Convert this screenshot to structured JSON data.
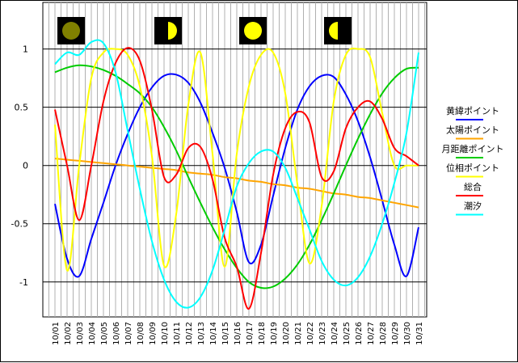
{
  "chart_data": {
    "type": "line",
    "x": [
      "10/01",
      "10/02",
      "10/03",
      "10/04",
      "10/05",
      "10/06",
      "10/07",
      "10/08",
      "10/09",
      "10/10",
      "10/11",
      "10/12",
      "10/13",
      "10/14",
      "10/15",
      "10/16",
      "10/17",
      "10/18",
      "10/19",
      "10/20",
      "10/21",
      "10/22",
      "10/23",
      "10/24",
      "10/25",
      "10/26",
      "10/27",
      "10/28",
      "10/29",
      "10/30",
      "10/31"
    ],
    "ylim": [
      -1.3,
      1.4
    ],
    "yticks": [
      {
        "value": 1,
        "label": "1"
      },
      {
        "value": 0.5,
        "label": "0.5"
      },
      {
        "value": 0,
        "label": "0"
      },
      {
        "value": -0.5,
        "label": "-0.5"
      },
      {
        "value": -1,
        "label": "-1"
      }
    ],
    "grid": true,
    "legend_position": "right",
    "moon_phases": [
      {
        "day": 2,
        "phase": "new-moon",
        "color": "#808000"
      },
      {
        "day": 10,
        "phase": "first-quarter",
        "color": "#ffff00"
      },
      {
        "day": 17,
        "phase": "full-moon",
        "color": "#ffff00"
      },
      {
        "day": 24,
        "phase": "last-quarter",
        "color": "#ffff00"
      }
    ],
    "series": [
      {
        "name": "黄緯ポイント",
        "color": "#0000ff",
        "values": [
          -0.33,
          -0.8,
          -0.95,
          -0.63,
          -0.32,
          0.0,
          0.27,
          0.5,
          0.67,
          0.77,
          0.78,
          0.71,
          0.54,
          0.28,
          -0.02,
          -0.4,
          -0.83,
          -0.68,
          -0.26,
          0.15,
          0.48,
          0.68,
          0.77,
          0.76,
          0.61,
          0.38,
          0.07,
          -0.3,
          -0.68,
          -0.95,
          -0.53
        ]
      },
      {
        "name": "太陽ポイント",
        "color": "#ffa500",
        "values": [
          0.06,
          0.05,
          0.04,
          0.03,
          0.02,
          0.01,
          0.0,
          -0.01,
          -0.02,
          -0.03,
          -0.04,
          -0.06,
          -0.07,
          -0.08,
          -0.1,
          -0.11,
          -0.13,
          -0.14,
          -0.16,
          -0.17,
          -0.19,
          -0.2,
          -0.22,
          -0.24,
          -0.25,
          -0.27,
          -0.28,
          -0.3,
          -0.32,
          -0.34,
          -0.36
        ]
      },
      {
        "name": "月距離ポイント",
        "color": "#00cc00",
        "values": [
          0.8,
          0.84,
          0.86,
          0.85,
          0.82,
          0.77,
          0.7,
          0.62,
          0.5,
          0.33,
          0.13,
          -0.1,
          -0.32,
          -0.53,
          -0.72,
          -0.88,
          -1.0,
          -1.05,
          -1.04,
          -0.97,
          -0.85,
          -0.68,
          -0.47,
          -0.24,
          0.0,
          0.23,
          0.44,
          0.62,
          0.75,
          0.83,
          0.84
        ]
      },
      {
        "name": "位相ポイント",
        "color": "#ffff00",
        "values": [
          0.35,
          -0.9,
          0.0,
          0.75,
          0.97,
          1.0,
          0.95,
          0.68,
          0.08,
          -0.86,
          -0.42,
          0.52,
          0.97,
          0.1,
          -0.87,
          0.1,
          0.68,
          0.95,
          0.97,
          0.62,
          -0.16,
          -0.84,
          -0.35,
          0.55,
          0.95,
          1.0,
          0.93,
          0.45,
          0.0,
          0.0,
          0.0
        ]
      },
      {
        "name": "総合",
        "color": "#ff0000",
        "values": [
          0.48,
          0.0,
          -0.47,
          0.0,
          0.55,
          0.88,
          1.01,
          0.9,
          0.48,
          -0.1,
          -0.08,
          0.15,
          0.16,
          -0.12,
          -0.62,
          -0.87,
          -1.23,
          -0.75,
          -0.08,
          0.32,
          0.46,
          0.37,
          -0.1,
          -0.05,
          0.32,
          0.5,
          0.55,
          0.4,
          0.15,
          0.08,
          0.0
        ]
      },
      {
        "name": "潮汐",
        "color": "#00ffff",
        "values": [
          0.87,
          0.97,
          0.95,
          1.06,
          1.05,
          0.8,
          0.3,
          -0.2,
          -0.65,
          -0.98,
          -1.17,
          -1.22,
          -1.13,
          -0.9,
          -0.55,
          -0.18,
          0.02,
          0.12,
          0.12,
          -0.02,
          -0.28,
          -0.55,
          -0.82,
          -0.98,
          -1.03,
          -0.96,
          -0.78,
          -0.5,
          -0.15,
          0.28,
          0.97
        ]
      }
    ]
  }
}
